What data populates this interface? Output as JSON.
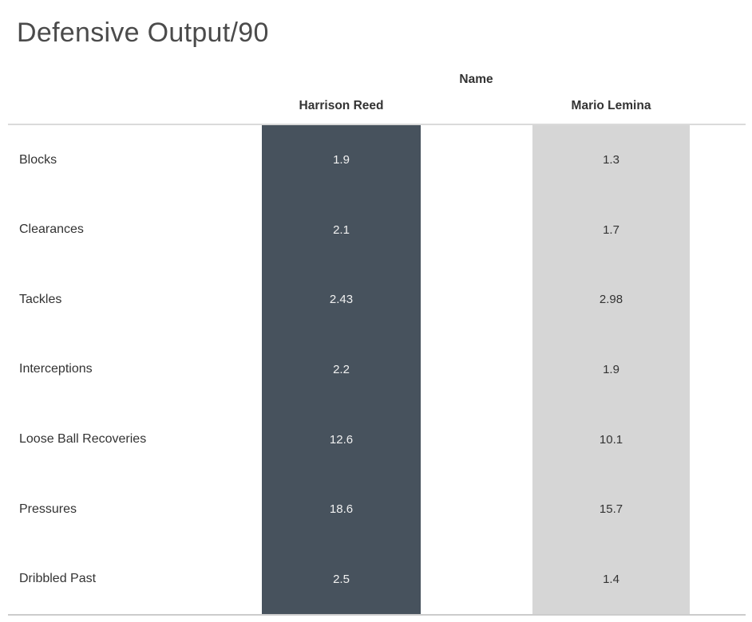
{
  "title": "Defensive Output/90",
  "column_field_label": "Name",
  "colors": {
    "harrison_reed_bar": "#47525d",
    "mario_lemina_bar": "#d6d6d6",
    "value_text_on_dark": "#f1f1f1",
    "value_text_on_light": "#333333",
    "header_text": "#333333",
    "title_text": "#4b4b4b",
    "rule_top": "#dadada",
    "rule_bottom": "#cccccc",
    "background": "#ffffff"
  },
  "chart_data": {
    "type": "table",
    "title": "Defensive Output/90",
    "column_field": "Name",
    "categories": [
      "Blocks",
      "Clearances",
      "Tackles",
      "Interceptions",
      "Loose Ball Recoveries",
      "Pressures",
      "Dribbled Past"
    ],
    "series": [
      {
        "name": "Harrison Reed",
        "values": [
          1.9,
          2.1,
          2.43,
          2.2,
          12.6,
          18.6,
          2.5
        ]
      },
      {
        "name": "Mario Lemina",
        "values": [
          1.3,
          1.7,
          2.98,
          1.9,
          10.1,
          15.7,
          1.4
        ]
      }
    ],
    "legend_position": "none",
    "grid": "off",
    "value_labels": "on"
  }
}
